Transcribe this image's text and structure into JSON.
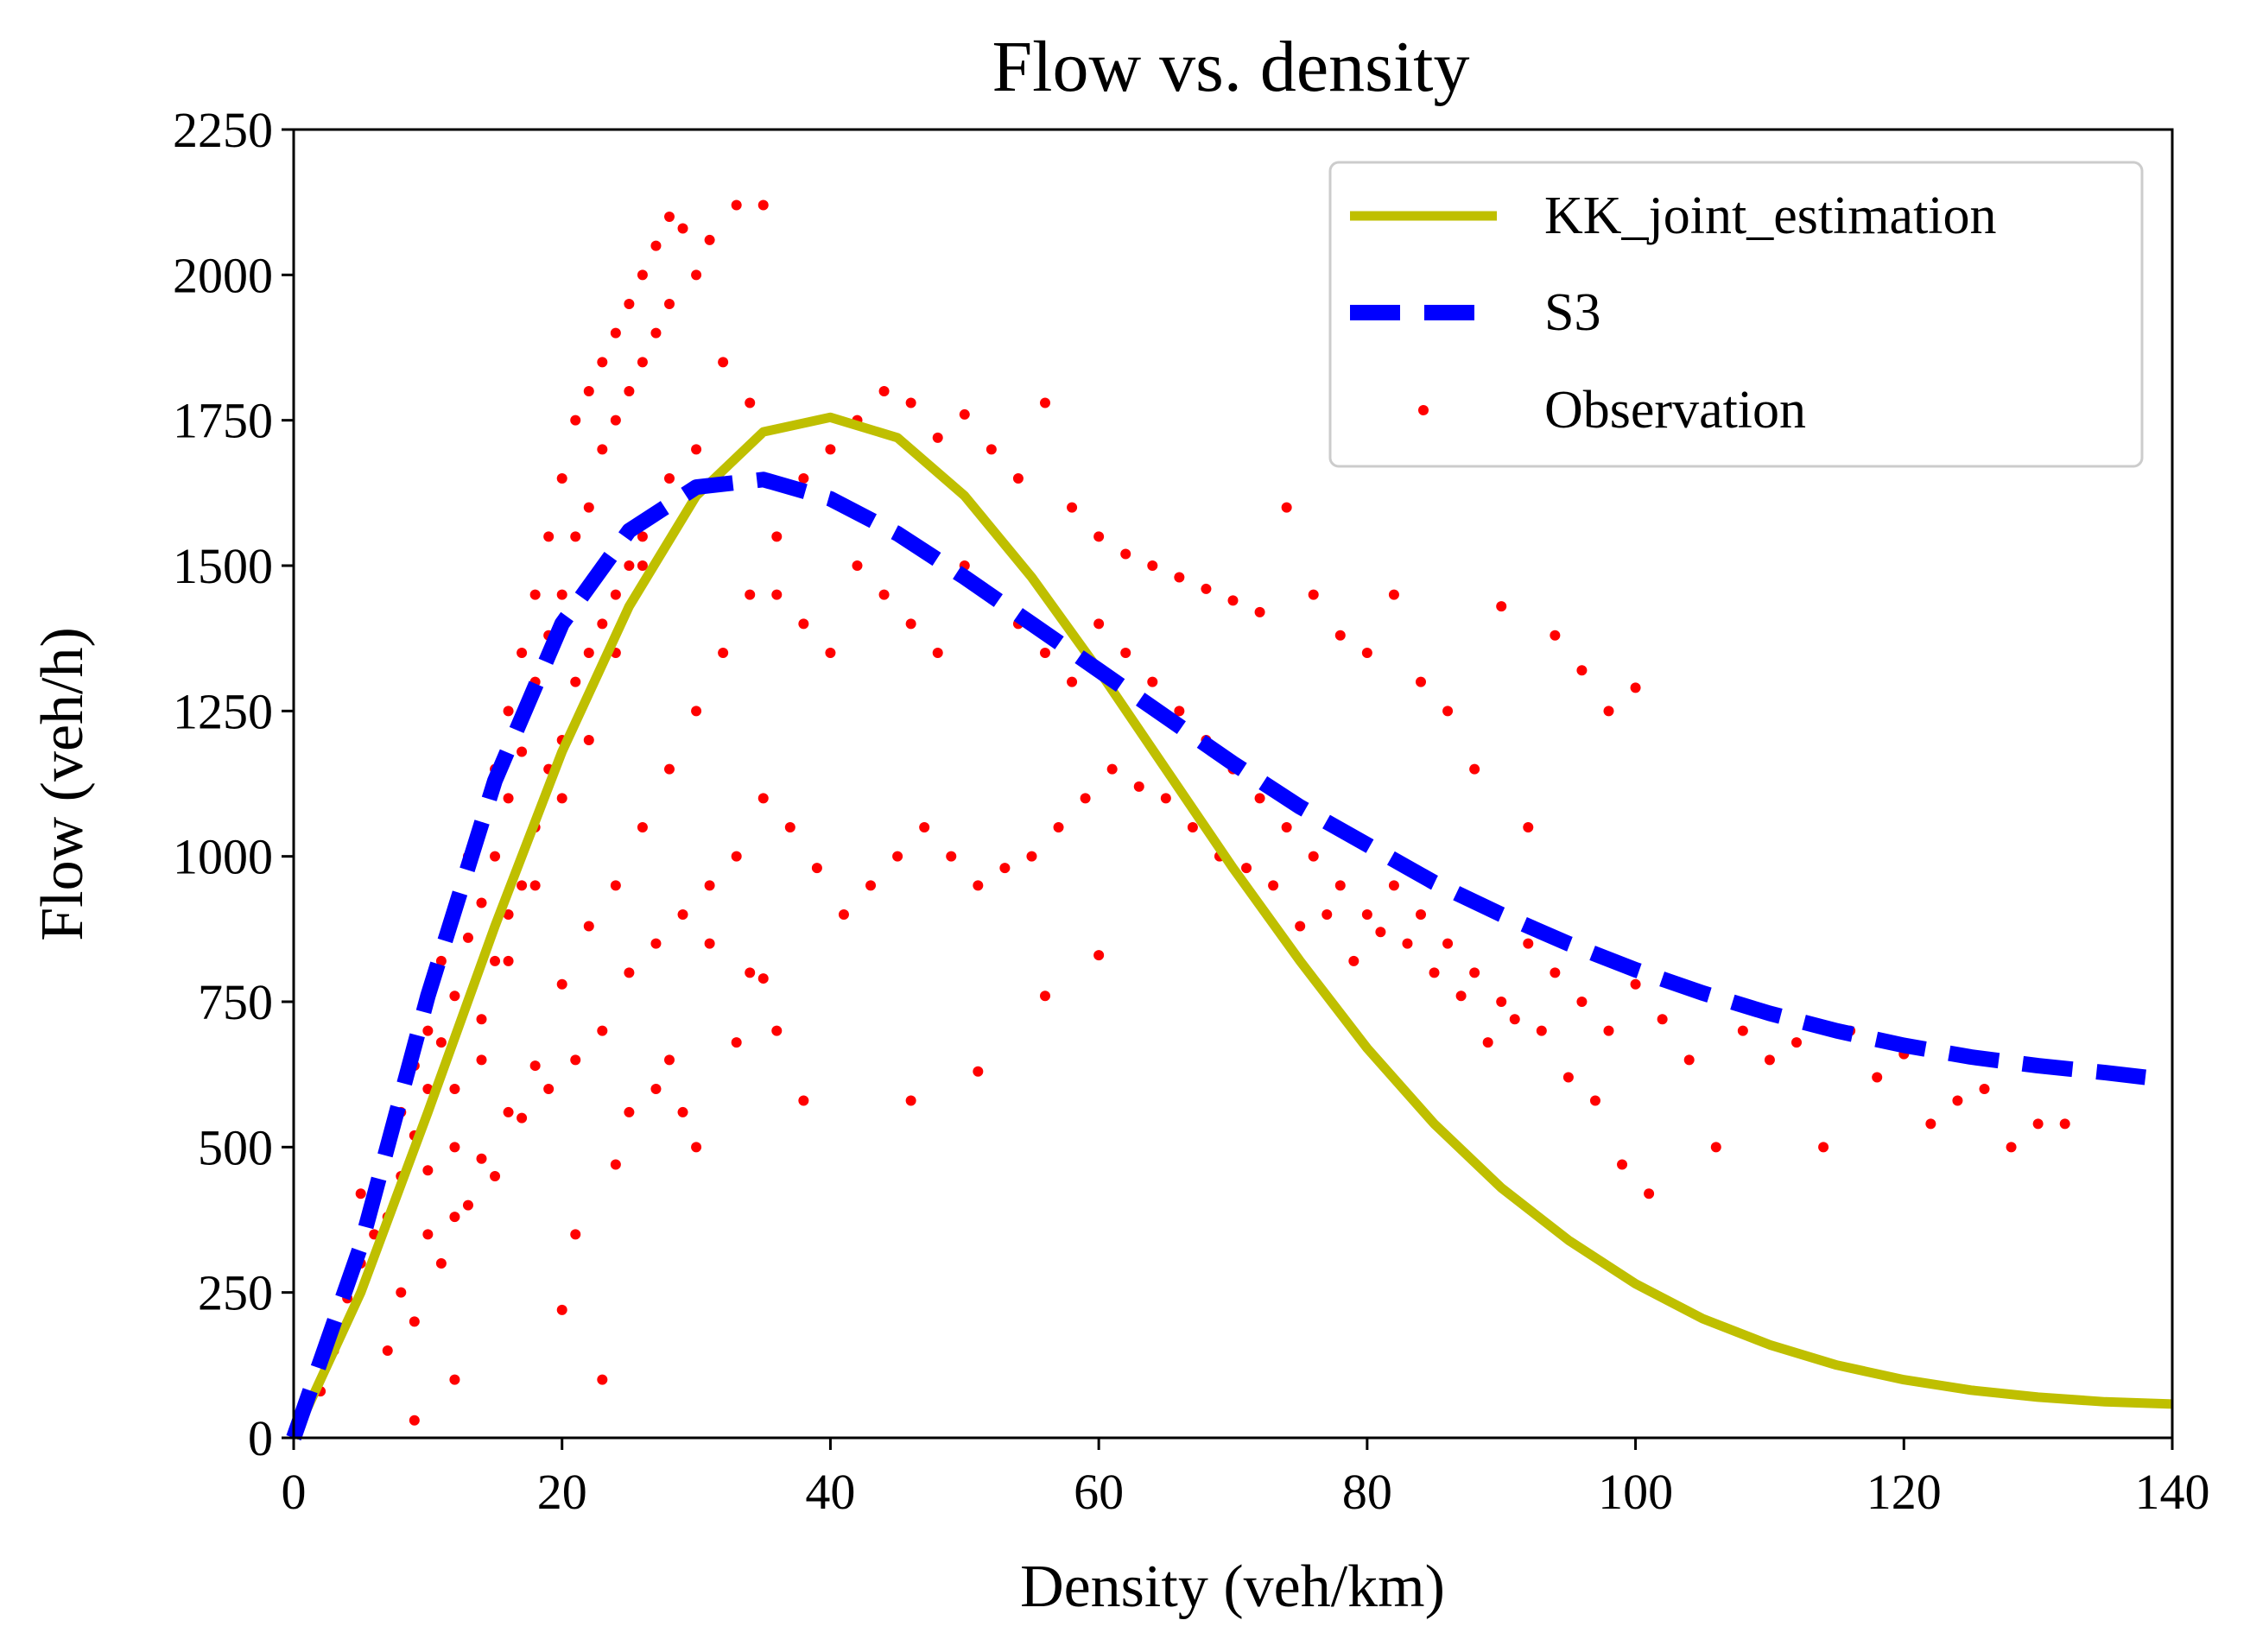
{
  "chart_data": {
    "type": "scatter",
    "title": "Flow vs. density",
    "xlabel": "Density (veh/km)",
    "ylabel": "Flow (veh/h)",
    "xlim": [
      0,
      140
    ],
    "ylim": [
      0,
      2250
    ],
    "xticks": [
      0,
      20,
      40,
      60,
      80,
      100,
      120,
      140
    ],
    "yticks": [
      0,
      250,
      500,
      750,
      1000,
      1250,
      1500,
      1750,
      2000,
      2250
    ],
    "legend_position": "top-right",
    "series": [
      {
        "name": "KK_joint_estimation",
        "kind": "line",
        "style": "solid",
        "color": "#bfbf00",
        "x": [
          0,
          5,
          10,
          15,
          20,
          25,
          30,
          35,
          40,
          45,
          50,
          55,
          60,
          65,
          70,
          75,
          80,
          85,
          90,
          95,
          100,
          105,
          110,
          115,
          120,
          125,
          130,
          135,
          140
        ],
        "y": [
          0,
          250,
          560,
          880,
          1180,
          1430,
          1620,
          1730,
          1755,
          1720,
          1620,
          1480,
          1320,
          1150,
          980,
          820,
          670,
          540,
          430,
          340,
          265,
          205,
          160,
          125,
          100,
          82,
          70,
          62,
          58
        ]
      },
      {
        "name": "S3",
        "kind": "line",
        "style": "dashed",
        "color": "#0000ff",
        "x": [
          0,
          5,
          10,
          15,
          20,
          25,
          30,
          35,
          40,
          45,
          50,
          55,
          60,
          65,
          70,
          75,
          80,
          85,
          90,
          95,
          100,
          105,
          110,
          115,
          120,
          125,
          130,
          135,
          138
        ],
        "y": [
          0,
          330,
          760,
          1130,
          1400,
          1560,
          1635,
          1648,
          1615,
          1555,
          1480,
          1400,
          1320,
          1240,
          1160,
          1085,
          1020,
          955,
          900,
          850,
          805,
          765,
          730,
          700,
          675,
          655,
          640,
          628,
          620
        ]
      },
      {
        "name": "Observation",
        "kind": "scatter",
        "color": "#ff0000",
        "points": [
          [
            2,
            80
          ],
          [
            3,
            150
          ],
          [
            4,
            240
          ],
          [
            5,
            300
          ],
          [
            5,
            420
          ],
          [
            6,
            350
          ],
          [
            7,
            500
          ],
          [
            7,
            380
          ],
          [
            8,
            560
          ],
          [
            8,
            450
          ],
          [
            9,
            640
          ],
          [
            9,
            520
          ],
          [
            10,
            700
          ],
          [
            10,
            600
          ],
          [
            10,
            460
          ],
          [
            11,
            820
          ],
          [
            11,
            680
          ],
          [
            12,
            900
          ],
          [
            12,
            760
          ],
          [
            12,
            600
          ],
          [
            13,
            1000
          ],
          [
            13,
            860
          ],
          [
            14,
            1050
          ],
          [
            14,
            920
          ],
          [
            14,
            720
          ],
          [
            15,
            1150
          ],
          [
            15,
            1000
          ],
          [
            15,
            820
          ],
          [
            16,
            1250
          ],
          [
            16,
            1100
          ],
          [
            16,
            900
          ],
          [
            17,
            1350
          ],
          [
            17,
            1180
          ],
          [
            17,
            950
          ],
          [
            18,
            1450
          ],
          [
            18,
            1300
          ],
          [
            18,
            1050
          ],
          [
            19,
            1550
          ],
          [
            19,
            1380
          ],
          [
            19,
            1150
          ],
          [
            20,
            1650
          ],
          [
            20,
            1450
          ],
          [
            20,
            1200
          ],
          [
            21,
            1750
          ],
          [
            21,
            1550
          ],
          [
            21,
            1300
          ],
          [
            22,
            1800
          ],
          [
            22,
            1600
          ],
          [
            22,
            1350
          ],
          [
            23,
            1850
          ],
          [
            23,
            1700
          ],
          [
            23,
            1400
          ],
          [
            24,
            1900
          ],
          [
            24,
            1750
          ],
          [
            24,
            1450
          ],
          [
            25,
            1950
          ],
          [
            25,
            1800
          ],
          [
            25,
            1500
          ],
          [
            26,
            2000
          ],
          [
            26,
            1850
          ],
          [
            26,
            1550
          ],
          [
            27,
            2050
          ],
          [
            27,
            1900
          ],
          [
            28,
            2100
          ],
          [
            28,
            1950
          ],
          [
            29,
            2080
          ],
          [
            30,
            2000
          ],
          [
            31,
            2060
          ],
          [
            33,
            2120
          ],
          [
            35,
            2120
          ],
          [
            32,
            1850
          ],
          [
            34,
            1780
          ],
          [
            30,
            1700
          ],
          [
            28,
            1650
          ],
          [
            26,
            1500
          ],
          [
            24,
            1350
          ],
          [
            22,
            1200
          ],
          [
            20,
            1100
          ],
          [
            18,
            950
          ],
          [
            16,
            820
          ],
          [
            14,
            650
          ],
          [
            12,
            500
          ],
          [
            10,
            350
          ],
          [
            8,
            250
          ],
          [
            12,
            380
          ],
          [
            14,
            480
          ],
          [
            16,
            560
          ],
          [
            18,
            640
          ],
          [
            20,
            780
          ],
          [
            22,
            880
          ],
          [
            24,
            950
          ],
          [
            26,
            1050
          ],
          [
            28,
            1150
          ],
          [
            30,
            1250
          ],
          [
            32,
            1350
          ],
          [
            34,
            1450
          ],
          [
            36,
            1550
          ],
          [
            38,
            1650
          ],
          [
            40,
            1700
          ],
          [
            42,
            1750
          ],
          [
            44,
            1800
          ],
          [
            46,
            1780
          ],
          [
            48,
            1720
          ],
          [
            50,
            1760
          ],
          [
            52,
            1700
          ],
          [
            54,
            1650
          ],
          [
            56,
            1780
          ],
          [
            58,
            1600
          ],
          [
            60,
            1550
          ],
          [
            62,
            1520
          ],
          [
            64,
            1500
          ],
          [
            66,
            1480
          ],
          [
            68,
            1460
          ],
          [
            70,
            1440
          ],
          [
            72,
            1420
          ],
          [
            74,
            1600
          ],
          [
            76,
            1450
          ],
          [
            78,
            1380
          ],
          [
            80,
            1350
          ],
          [
            82,
            1450
          ],
          [
            84,
            1300
          ],
          [
            86,
            1250
          ],
          [
            88,
            1150
          ],
          [
            90,
            1430
          ],
          [
            92,
            1050
          ],
          [
            94,
            1380
          ],
          [
            96,
            1320
          ],
          [
            98,
            1250
          ],
          [
            100,
            1290
          ],
          [
            36,
            1450
          ],
          [
            38,
            1400
          ],
          [
            40,
            1350
          ],
          [
            42,
            1500
          ],
          [
            44,
            1450
          ],
          [
            46,
            1400
          ],
          [
            48,
            1350
          ],
          [
            50,
            1500
          ],
          [
            52,
            1450
          ],
          [
            54,
            1400
          ],
          [
            56,
            1350
          ],
          [
            58,
            1300
          ],
          [
            60,
            1400
          ],
          [
            62,
            1350
          ],
          [
            64,
            1300
          ],
          [
            66,
            1250
          ],
          [
            68,
            1200
          ],
          [
            70,
            1150
          ],
          [
            72,
            1100
          ],
          [
            74,
            1050
          ],
          [
            76,
            1000
          ],
          [
            78,
            950
          ],
          [
            80,
            900
          ],
          [
            82,
            950
          ],
          [
            84,
            900
          ],
          [
            86,
            850
          ],
          [
            88,
            800
          ],
          [
            90,
            750
          ],
          [
            92,
            850
          ],
          [
            94,
            800
          ],
          [
            96,
            750
          ],
          [
            98,
            700
          ],
          [
            100,
            780
          ],
          [
            102,
            720
          ],
          [
            104,
            650
          ],
          [
            106,
            500
          ],
          [
            108,
            700
          ],
          [
            110,
            650
          ],
          [
            112,
            680
          ],
          [
            114,
            500
          ],
          [
            116,
            700
          ],
          [
            118,
            620
          ],
          [
            120,
            660
          ],
          [
            122,
            540
          ],
          [
            124,
            580
          ],
          [
            126,
            600
          ],
          [
            128,
            500
          ],
          [
            130,
            540
          ],
          [
            132,
            540
          ],
          [
            101,
            420
          ],
          [
            99,
            470
          ],
          [
            97,
            580
          ],
          [
            95,
            620
          ],
          [
            93,
            700
          ],
          [
            91,
            720
          ],
          [
            89,
            680
          ],
          [
            87,
            760
          ],
          [
            85,
            800
          ],
          [
            83,
            850
          ],
          [
            81,
            870
          ],
          [
            79,
            820
          ],
          [
            77,
            900
          ],
          [
            75,
            880
          ],
          [
            73,
            950
          ],
          [
            71,
            980
          ],
          [
            69,
            1000
          ],
          [
            67,
            1050
          ],
          [
            65,
            1100
          ],
          [
            63,
            1120
          ],
          [
            61,
            1150
          ],
          [
            59,
            1100
          ],
          [
            57,
            1050
          ],
          [
            55,
            1000
          ],
          [
            53,
            980
          ],
          [
            51,
            950
          ],
          [
            49,
            1000
          ],
          [
            47,
            1050
          ],
          [
            45,
            1000
          ],
          [
            43,
            950
          ],
          [
            41,
            900
          ],
          [
            39,
            980
          ],
          [
            37,
            1050
          ],
          [
            35,
            1100
          ],
          [
            33,
            1000
          ],
          [
            31,
            950
          ],
          [
            29,
            900
          ],
          [
            27,
            850
          ],
          [
            25,
            800
          ],
          [
            23,
            700
          ],
          [
            21,
            650
          ],
          [
            19,
            600
          ],
          [
            17,
            550
          ],
          [
            15,
            450
          ],
          [
            13,
            400
          ],
          [
            11,
            300
          ],
          [
            9,
            200
          ],
          [
            7,
            150
          ],
          [
            34,
            800
          ],
          [
            35,
            790
          ],
          [
            38,
            580
          ],
          [
            46,
            580
          ],
          [
            51,
            630
          ],
          [
            56,
            760
          ],
          [
            60,
            830
          ],
          [
            30,
            500
          ],
          [
            28,
            650
          ],
          [
            25,
            560
          ],
          [
            24,
            470
          ],
          [
            21,
            350
          ],
          [
            20,
            220
          ],
          [
            23,
            100
          ],
          [
            12,
            100
          ],
          [
            9,
            30
          ],
          [
            27,
            600
          ],
          [
            29,
            560
          ],
          [
            31,
            850
          ],
          [
            33,
            680
          ],
          [
            36,
            700
          ]
        ]
      }
    ]
  }
}
